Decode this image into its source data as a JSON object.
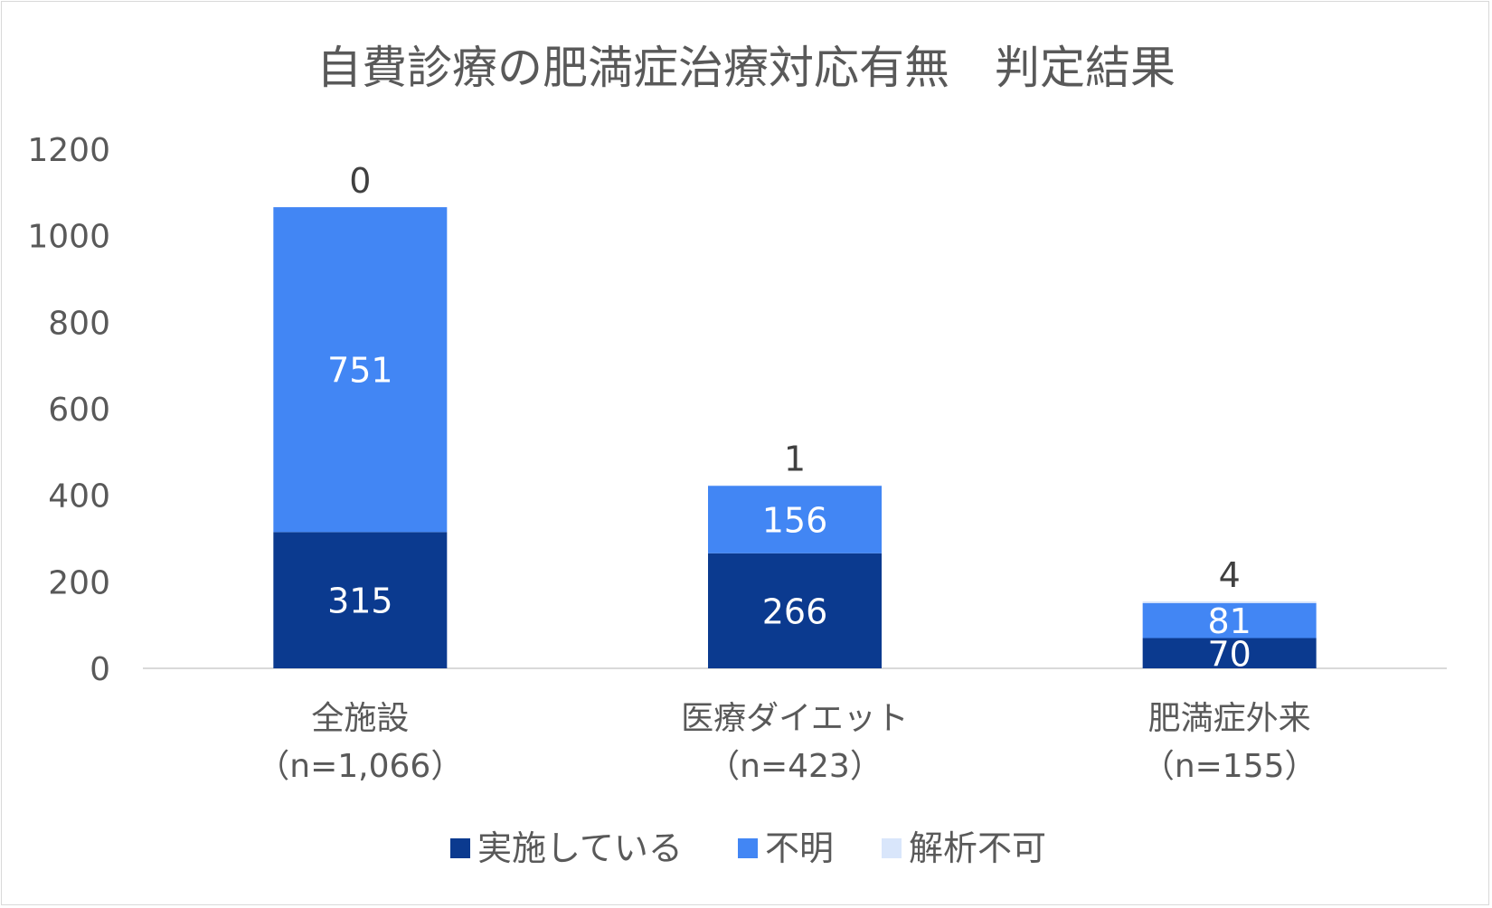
{
  "chart_data": {
    "type": "bar",
    "stacked": true,
    "title": "自費診療の肥満症治療対応有無　判定結果",
    "categories": [
      [
        "全施設",
        "（n=1,066）"
      ],
      [
        "医療ダイエット",
        "（n=423）"
      ],
      [
        "肥満症外来",
        "（n=155）"
      ]
    ],
    "series": [
      {
        "name": "実施している",
        "values": [
          315,
          266,
          70
        ],
        "color": "#0b3a8f"
      },
      {
        "name": "不明",
        "values": [
          751,
          156,
          81
        ],
        "color": "#4286f4"
      },
      {
        "name": "解析不可",
        "values": [
          0,
          1,
          4
        ],
        "color": "#d9e6fb"
      }
    ],
    "ylim": [
      0,
      1200
    ],
    "yticks": [
      0,
      200,
      400,
      600,
      800,
      1000,
      1200
    ],
    "xlabel": "",
    "ylabel": "",
    "grid": false,
    "legend_position": "bottom"
  }
}
